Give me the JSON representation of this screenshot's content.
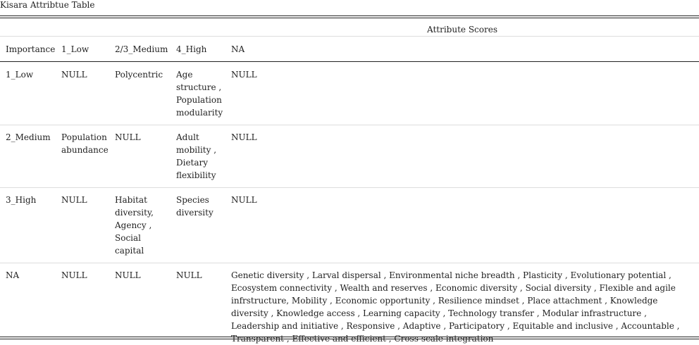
{
  "table": {
    "caption": "Kisara Attribtue Table",
    "spanner": "Attribute Scores",
    "headers": [
      "Importance",
      "1_Low",
      "2/3_Medium",
      "4_High",
      "NA"
    ],
    "rows": [
      {
        "importance": "1_Low",
        "low": "NULL",
        "medium": "Polycentric",
        "high": "Age structure , Population modularity",
        "na": "NULL"
      },
      {
        "importance": "2_Medium",
        "low": "Population abundance",
        "medium": "NULL",
        "high": "Adult mobility , Dietary flexibility",
        "na": "NULL"
      },
      {
        "importance": "3_High",
        "low": "NULL",
        "medium": "Habitat diversity, Agency , Social capital",
        "high": "Species diversity",
        "na": "NULL"
      },
      {
        "importance": "NA",
        "low": "NULL",
        "medium": "NULL",
        "high": "NULL",
        "na": "Genetic diversity , Larval dispersal , Environmental niche breadth , Plasticity , Evolutionary potential , Ecosystem connectivity , Wealth and reserves , Economic diversity , Social diversity , Flexible and agile infrstructure, Mobility , Economic opportunity , Resilience mindset , Place attachment , Knowledge diversity , Knowledge access , Learning capacity , Technology transfer , Modular infrastructure , Leadership and initiative , Responsive , Adaptive , Participatory , Equitable and inclusive , Accountable , Transparent , Effective and efficient , Cross-scale integration"
      }
    ]
  }
}
